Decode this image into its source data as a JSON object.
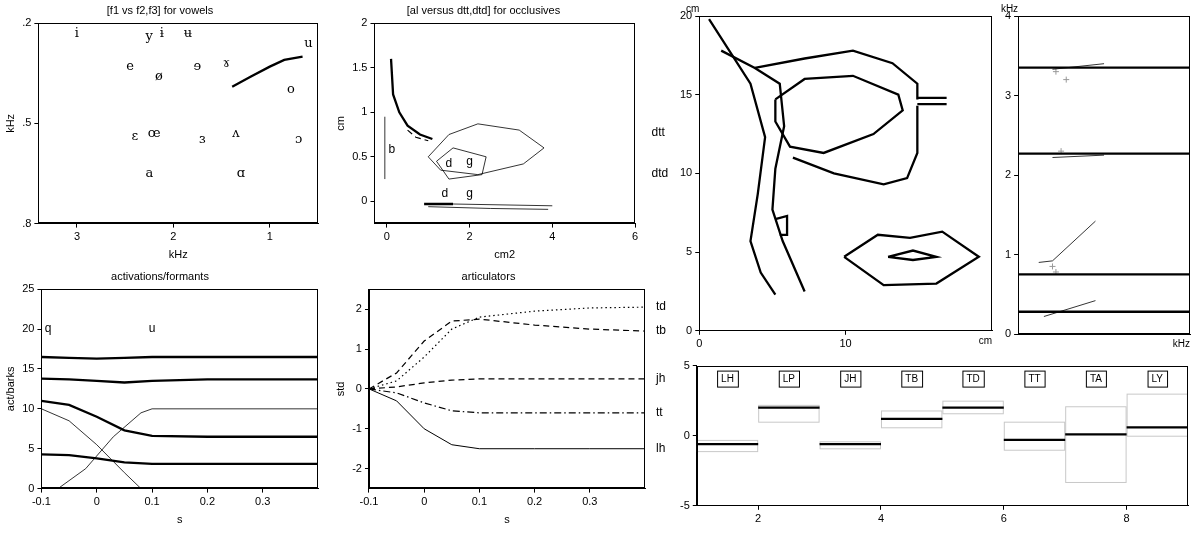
{
  "chart_data": [
    {
      "type": "scatter",
      "title": "[f1 vs f2,f3] for vowels",
      "xlabel": "kHz",
      "ylabel": "kHz",
      "xlim": [
        3.4,
        0.5
      ],
      "ylim": [
        0.8,
        0.2
      ],
      "xticks": [
        3,
        2,
        1
      ],
      "yticks": [
        {
          "value": 0.2,
          "label": ".2"
        },
        {
          "value": 0.5,
          "label": ".5"
        },
        {
          "value": 0.8,
          "label": ".8"
        }
      ],
      "grid": false,
      "series": [
        {
          "x": [
            1.39,
            1.2,
            1.0,
            0.85,
            0.66
          ],
          "values": [
            0.39,
            0.36,
            0.33,
            0.31,
            0.3
          ],
          "line_style": "thick",
          "color": "#000000"
        }
      ],
      "annotations": [
        {
          "text": "i",
          "x": 3.0,
          "y": 0.23
        },
        {
          "text": "y",
          "x": 2.25,
          "y": 0.24
        },
        {
          "text": "ɨ",
          "x": 2.12,
          "y": 0.23
        },
        {
          "text": "ʉ",
          "x": 1.85,
          "y": 0.23
        },
        {
          "text": "u",
          "x": 0.6,
          "y": 0.26
        },
        {
          "text": "e",
          "x": 2.45,
          "y": 0.33
        },
        {
          "text": "ø",
          "x": 2.15,
          "y": 0.36
        },
        {
          "text": "ɘ",
          "x": 1.75,
          "y": 0.33
        },
        {
          "text": "ɤ",
          "x": 1.45,
          "y": 0.32
        },
        {
          "text": "o",
          "x": 0.78,
          "y": 0.4
        },
        {
          "text": "ɛ",
          "x": 2.4,
          "y": 0.54
        },
        {
          "text": "œ",
          "x": 2.2,
          "y": 0.53
        },
        {
          "text": "ɜ",
          "x": 1.7,
          "y": 0.55
        },
        {
          "text": "ʌ",
          "x": 1.35,
          "y": 0.53
        },
        {
          "text": "ɔ",
          "x": 0.7,
          "y": 0.55
        },
        {
          "text": "a",
          "x": 2.25,
          "y": 0.65
        },
        {
          "text": "ɑ",
          "x": 1.3,
          "y": 0.65
        }
      ]
    },
    {
      "type": "line",
      "title": "[al versus dtt,dtd] for occlusives",
      "xlabel": "cm2",
      "ylabel": "cm",
      "xlim": [
        -0.3,
        6
      ],
      "ylim": [
        -0.25,
        2
      ],
      "xticks": [
        0,
        2,
        4,
        6
      ],
      "yticks": [
        0,
        0.5,
        1,
        1.5,
        2
      ],
      "grid": false,
      "series": [
        {
          "x": [
            0.1,
            0.15,
            0.3,
            0.5,
            0.8,
            1.1
          ],
          "values": [
            1.6,
            1.2,
            1.0,
            0.85,
            0.75,
            0.7
          ],
          "line_style": "thick",
          "color": "#000000"
        },
        {
          "x": [
            0.5,
            0.7,
            1.0
          ],
          "values": [
            0.8,
            0.72,
            0.68
          ],
          "line_style": "dashed",
          "color": "#000000"
        },
        {
          "x": [
            -0.05,
            -0.05
          ],
          "values": [
            0.25,
            0.95
          ],
          "line_style": "thin",
          "color": "#000000"
        },
        {
          "x": [
            1.0,
            1.5,
            2.2,
            3.2,
            3.8,
            3.3,
            2.2,
            1.3,
            1.0
          ],
          "values": [
            0.5,
            0.75,
            0.87,
            0.8,
            0.6,
            0.42,
            0.3,
            0.35,
            0.5
          ],
          "line_style": "thin",
          "color": "#000000"
        },
        {
          "x": [
            1.2,
            1.6,
            2.4,
            2.3,
            1.5,
            1.2
          ],
          "values": [
            0.45,
            0.6,
            0.5,
            0.3,
            0.25,
            0.45
          ],
          "line_style": "thin",
          "color": "#000000"
        },
        {
          "x": [
            0.9,
            1.6
          ],
          "values": [
            -0.03,
            -0.03
          ],
          "line_style": "thick",
          "color": "#000000"
        },
        {
          "x": [
            1.6,
            4.0
          ],
          "values": [
            -0.03,
            -0.05
          ],
          "line_style": "thin",
          "color": "#000000"
        },
        {
          "x": [
            1.0,
            2.5,
            3.9
          ],
          "values": [
            -0.06,
            -0.08,
            -0.09
          ],
          "line_style": "thin",
          "color": "#000000"
        }
      ],
      "annotations": [
        {
          "text": "b",
          "x": 0.12,
          "y": 0.58
        },
        {
          "text": "d",
          "x": 1.5,
          "y": 0.42
        },
        {
          "text": "g",
          "x": 2.0,
          "y": 0.45
        },
        {
          "text": "d",
          "x": 1.4,
          "y": 0.09
        },
        {
          "text": "g",
          "x": 2.0,
          "y": 0.09
        },
        {
          "text": "dtt",
          "x": 6.4,
          "y": 0.77
        },
        {
          "text": "dtd",
          "x": 6.4,
          "y": 0.31
        }
      ]
    },
    {
      "type": "line",
      "title": "activations/formants",
      "xlabel": "s",
      "ylabel": "act/barks",
      "xlim": [
        -0.1,
        0.4
      ],
      "ylim": [
        0,
        25
      ],
      "xticks": [
        -0.1,
        0,
        0.1,
        0.2,
        0.3
      ],
      "yticks": [
        0,
        5,
        10,
        15,
        20,
        25
      ],
      "grid": false,
      "series": [
        {
          "x": [
            -0.1,
            -0.05,
            0,
            0.05,
            0.1,
            0.2,
            0.3,
            0.4
          ],
          "values": [
            16.5,
            16.4,
            16.3,
            16.4,
            16.5,
            16.5,
            16.5,
            16.5
          ],
          "line_style": "thick",
          "color": "#000000"
        },
        {
          "x": [
            -0.1,
            -0.05,
            0,
            0.05,
            0.1,
            0.2,
            0.3,
            0.4
          ],
          "values": [
            13.8,
            13.7,
            13.5,
            13.3,
            13.5,
            13.7,
            13.7,
            13.7
          ],
          "line_style": "thick",
          "color": "#000000"
        },
        {
          "x": [
            -0.1,
            -0.05,
            0,
            0.05,
            0.1,
            0.2,
            0.3,
            0.4
          ],
          "values": [
            11,
            10.5,
            9,
            7.3,
            6.6,
            6.5,
            6.5,
            6.5
          ],
          "line_style": "thick",
          "color": "#000000"
        },
        {
          "x": [
            -0.1,
            -0.05,
            0,
            0.05,
            0.1,
            0.2,
            0.3,
            0.4
          ],
          "values": [
            4.3,
            4.2,
            3.8,
            3.3,
            3.1,
            3.1,
            3.1,
            3.1
          ],
          "line_style": "thick",
          "color": "#000000"
        },
        {
          "x": [
            -0.1,
            -0.05,
            0,
            0.05,
            0.08,
            0.4
          ],
          "values": [
            10,
            8.5,
            5.5,
            2,
            0,
            0
          ],
          "line_style": "thin",
          "color": "#000000"
        },
        {
          "x": [
            -0.1,
            -0.07,
            -0.02,
            0.03,
            0.08,
            0.1,
            0.4
          ],
          "values": [
            0,
            0,
            2.5,
            6.5,
            9.5,
            10,
            10
          ],
          "line_style": "thin",
          "color": "#000000"
        }
      ],
      "annotations": [
        {
          "text": "q",
          "x": -0.088,
          "y": 20
        },
        {
          "text": "u",
          "x": 0.1,
          "y": 20
        }
      ]
    },
    {
      "type": "line",
      "title": "articulators",
      "xlabel": "s",
      "ylabel": "std",
      "xlim": [
        -0.1,
        0.4
      ],
      "ylim": [
        -2.5,
        2.5
      ],
      "xticks": [
        -0.1,
        0,
        0.1,
        0.2,
        0.3
      ],
      "yticks": [
        -2,
        -1,
        0,
        1,
        2
      ],
      "grid": false,
      "series": [
        {
          "x": [
            -0.1,
            -0.05,
            0,
            0.05,
            0.1,
            0.2,
            0.3,
            0.4
          ],
          "values": [
            0,
            0.2,
            0.8,
            1.5,
            1.8,
            1.95,
            2.03,
            2.05
          ],
          "line_style": "dotted",
          "color": "#000000"
        },
        {
          "x": [
            -0.1,
            -0.05,
            0,
            0.05,
            0.1,
            0.2,
            0.3,
            0.4
          ],
          "values": [
            0,
            0.4,
            1.2,
            1.7,
            1.75,
            1.6,
            1.5,
            1.45
          ],
          "line_style": "dashed",
          "color": "#000000"
        },
        {
          "x": [
            -0.1,
            -0.05,
            0,
            0.05,
            0.1,
            0.2,
            0.3,
            0.4
          ],
          "values": [
            0,
            0.05,
            0.15,
            0.22,
            0.25,
            0.25,
            0.25,
            0.25
          ],
          "line_style": "dashed",
          "color": "#000000"
        },
        {
          "x": [
            -0.1,
            -0.05,
            0,
            0.05,
            0.1,
            0.2,
            0.3,
            0.4
          ],
          "values": [
            0,
            -0.1,
            -0.35,
            -0.55,
            -0.6,
            -0.6,
            -0.6,
            -0.6
          ],
          "line_style": "dashdot",
          "color": "#000000"
        },
        {
          "x": [
            -0.1,
            -0.05,
            0,
            0.05,
            0.1,
            0.2,
            0.3,
            0.4
          ],
          "values": [
            0,
            -0.3,
            -1.0,
            -1.4,
            -1.5,
            -1.5,
            -1.5,
            -1.5
          ],
          "line_style": "solid",
          "color": "#000000"
        }
      ],
      "annotations": [
        {
          "text": "td",
          "x": 0.42,
          "y": 2.05
        },
        {
          "text": "tb",
          "x": 0.42,
          "y": 1.45
        },
        {
          "text": "jh",
          "x": 0.42,
          "y": 0.25
        },
        {
          "text": "tt",
          "x": 0.42,
          "y": -0.6
        },
        {
          "text": "lh",
          "x": 0.42,
          "y": -1.5
        }
      ]
    },
    {
      "type": "line",
      "xlabel": "cm",
      "ylabel": "cm",
      "xlim": [
        0,
        20
      ],
      "ylim": [
        0,
        20
      ],
      "xticks": [
        0,
        10
      ],
      "yticks": [
        0,
        5,
        10,
        15,
        20
      ],
      "grid": false,
      "series": [
        {
          "x": [
            0.67,
            3.5,
            4.5,
            4.0,
            3.5,
            4.2,
            5.2
          ],
          "values": [
            19.8,
            15.7,
            12.3,
            8.7,
            5.7,
            3.7,
            2.3
          ],
          "line_style": "thick",
          "color": "#000000"
        },
        {
          "x": [
            1.5,
            3.8,
            5.5,
            5.8,
            5.2,
            5.0,
            5.7,
            7.2
          ],
          "values": [
            17.8,
            16.7,
            15.7,
            13.0,
            10.3,
            7.7,
            5.7,
            2.5
          ],
          "line_style": "thick",
          "color": "#000000"
        },
        {
          "x": [
            3.8,
            7.2,
            10.5,
            13.2,
            14.9,
            14.9
          ],
          "values": [
            16.7,
            17.3,
            17.8,
            17.0,
            15.7,
            14.7
          ],
          "line_style": "thick",
          "color": "#000000"
        },
        {
          "x": [
            14.9,
            16.9
          ],
          "values": [
            14.8,
            14.8
          ],
          "line_style": "thick",
          "color": "#000000"
        },
        {
          "x": [
            14.9,
            16.9
          ],
          "values": [
            14.4,
            14.4
          ],
          "line_style": "thick",
          "color": "#000000"
        },
        {
          "x": [
            5.2,
            7.2,
            10.5,
            13.6,
            13.9,
            11.9,
            8.5,
            6.2,
            5.2,
            5.2
          ],
          "values": [
            14.7,
            16.0,
            16.2,
            15.0,
            14.0,
            12.5,
            11.3,
            11.7,
            13.3,
            14.7
          ],
          "line_style": "thick",
          "color": "#000000"
        },
        {
          "x": [
            6.4,
            9.2,
            12.6,
            14.2,
            14.9,
            14.9
          ],
          "values": [
            11.0,
            10.0,
            9.3,
            9.7,
            11.3,
            14.3
          ],
          "line_style": "thick",
          "color": "#000000"
        },
        {
          "x": [
            5.2,
            6.0,
            6.0,
            5.5
          ],
          "values": [
            7.1,
            7.3,
            6.1,
            6.1
          ],
          "line_style": "thick",
          "color": "#000000"
        },
        {
          "x": [
            9.9,
            12.2,
            14.4,
            16.6,
            19.1,
            16.2,
            12.6,
            9.9
          ],
          "values": [
            4.7,
            6.1,
            5.9,
            6.3,
            4.7,
            3.0,
            2.9,
            4.7
          ],
          "line_style": "thick",
          "color": "#000000"
        },
        {
          "x": [
            12.9,
            14.6,
            16.2,
            14.6,
            12.9
          ],
          "values": [
            4.7,
            5.1,
            4.7,
            4.5,
            4.7
          ],
          "line_style": "thick",
          "color": "#000000"
        }
      ]
    },
    {
      "type": "line",
      "xlabel": "kHz",
      "ylabel": "kHz",
      "xlim": [
        0,
        1
      ],
      "ylim": [
        0,
        4
      ],
      "xticks": [],
      "yticks": [
        0,
        1,
        2,
        3,
        4
      ],
      "grid": false,
      "tick_labels": "y",
      "series": [
        {
          "x": [
            0,
            1
          ],
          "values": [
            0.28,
            0.28
          ],
          "line_style": "thick",
          "color": "#000000"
        },
        {
          "x": [
            0,
            1
          ],
          "values": [
            0.75,
            0.75
          ],
          "line_style": "thick",
          "color": "#000000"
        },
        {
          "x": [
            0,
            1
          ],
          "values": [
            2.27,
            2.27
          ],
          "line_style": "thick",
          "color": "#000000"
        },
        {
          "x": [
            0,
            1
          ],
          "values": [
            3.35,
            3.35
          ],
          "line_style": "thick",
          "color": "#000000"
        },
        {
          "x": [
            0.15,
            0.45
          ],
          "values": [
            0.22,
            0.42
          ],
          "line_style": "thin",
          "color": "#000000"
        },
        {
          "x": [
            0.12,
            0.2,
            0.45
          ],
          "values": [
            0.9,
            0.92,
            1.42
          ],
          "line_style": "thin",
          "color": "#000000"
        },
        {
          "x": [
            0.2,
            0.5
          ],
          "values": [
            2.22,
            2.25
          ],
          "line_style": "thin",
          "color": "#000000"
        },
        {
          "x": [
            0.2,
            0.5
          ],
          "values": [
            3.33,
            3.4
          ],
          "line_style": "thin",
          "color": "#000000"
        },
        {
          "x": [
            0.2,
            0.22,
            0.25,
            0.22,
            0.28
          ],
          "values": [
            0.85,
            0.78,
            2.3,
            3.3,
            3.2
          ],
          "marker": "cross",
          "color": "#999999"
        }
      ]
    },
    {
      "type": "step",
      "categories": [
        "LH",
        "LP",
        "JH",
        "TB",
        "TD",
        "TT",
        "TA",
        "LY"
      ],
      "x": [
        1,
        2,
        3,
        4,
        5,
        6,
        7,
        8
      ],
      "values": [
        -0.6,
        2.0,
        -0.6,
        1.2,
        2.0,
        -0.3,
        0.1,
        0.6
      ],
      "ranges": [
        [
          -1.1,
          -0.3
        ],
        [
          1.0,
          2.2
        ],
        [
          -0.9,
          -0.4
        ],
        [
          0.6,
          1.8
        ],
        [
          1.6,
          2.5
        ],
        [
          -1.0,
          1.0
        ],
        [
          -3.3,
          2.1
        ],
        [
          0.0,
          3.0
        ]
      ],
      "xlim": [
        1,
        9
      ],
      "ylim": [
        -5,
        5
      ],
      "xticks": [
        2,
        4,
        6,
        8
      ],
      "yticks": [
        -5,
        0,
        5
      ],
      "grid": false,
      "line_style": "thick",
      "color": "#000000"
    }
  ]
}
